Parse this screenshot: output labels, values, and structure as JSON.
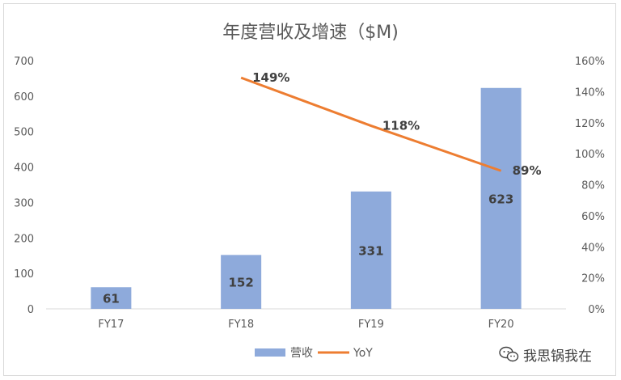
{
  "chart_data": {
    "type": "bar",
    "title": "年度营收及增速（$M)",
    "categories": [
      "FY17",
      "FY18",
      "FY19",
      "FY20"
    ],
    "series": [
      {
        "name": "营收",
        "type": "bar",
        "axis": "left",
        "values": [
          61,
          152,
          331,
          623
        ],
        "labels": [
          "61",
          "152",
          "331",
          "623"
        ],
        "color": "#8eaadb"
      },
      {
        "name": "YoY",
        "type": "line",
        "axis": "right",
        "values": [
          null,
          149,
          118,
          89
        ],
        "labels": [
          "",
          "149%",
          "118%",
          "89%"
        ],
        "color": "#ed7d31"
      }
    ],
    "y_left": {
      "min": 0,
      "max": 700,
      "step": 100,
      "ticks": [
        "0",
        "100",
        "200",
        "300",
        "400",
        "500",
        "600",
        "700"
      ]
    },
    "y_right": {
      "min": 0,
      "max": 160,
      "step": 20,
      "ticks": [
        "0%",
        "20%",
        "40%",
        "60%",
        "80%",
        "100%",
        "120%",
        "140%",
        "160%"
      ]
    },
    "legend": "bottom",
    "grid": false
  },
  "watermark": {
    "text": "我思锅我在",
    "icon": "wechat-icon"
  }
}
